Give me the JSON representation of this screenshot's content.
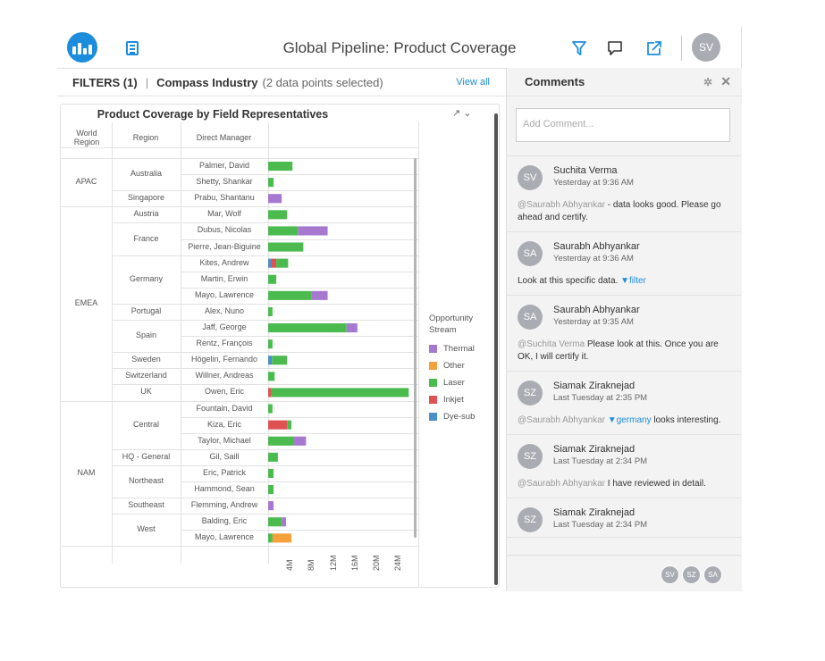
{
  "header": {
    "title": "Global Pipeline: Product Coverage",
    "user_initials": "SV"
  },
  "filters": {
    "label": "FILTERS (1)",
    "divider": "|",
    "filter_name": "Compass Industry",
    "filter_detail": "(2 data points selected)",
    "view_all": "View all"
  },
  "chart": {
    "title": "Product Coverage by Field Representatives",
    "controls": "↗ ⌄",
    "headers": {
      "world_region": "World Region",
      "region": "Region",
      "manager": "Direct Manager"
    },
    "legend_title": "Opportunity Stream",
    "colors": {
      "Thermal": "#a678d0",
      "Other": "#f5a03a",
      "Laser": "#4cbb4f",
      "Inkjet": "#e05252",
      "Dye-sub": "#4a90c8"
    }
  },
  "chart_data": {
    "type": "bar",
    "orientation": "horizontal",
    "stacked": true,
    "title": "Product Coverage by Field Representatives",
    "xlabel": "",
    "ylabel": "",
    "x_ticks": [
      "4M",
      "8M",
      "12M",
      "16M",
      "20M",
      "24M"
    ],
    "xlim": [
      0,
      26
    ],
    "legend": {
      "title": "Opportunity Stream",
      "placement": "right",
      "entries": [
        "Thermal",
        "Other",
        "Laser",
        "Inkjet",
        "Dye-sub"
      ]
    },
    "world_regions": [
      {
        "name": "APAC",
        "start": 0,
        "end": 2
      },
      {
        "name": "EMEA",
        "start": 3,
        "end": 14
      },
      {
        "name": "NAM",
        "start": 15,
        "end": 23
      }
    ],
    "regions": [
      {
        "name": "Australia",
        "start": 0,
        "end": 1
      },
      {
        "name": "Singapore",
        "start": 2,
        "end": 2
      },
      {
        "name": "Austria",
        "start": 3,
        "end": 3
      },
      {
        "name": "France",
        "start": 4,
        "end": 5
      },
      {
        "name": "Germany",
        "start": 6,
        "end": 8
      },
      {
        "name": "Portugal",
        "start": 9,
        "end": 9
      },
      {
        "name": "Spain",
        "start": 10,
        "end": 11
      },
      {
        "name": "Sweden",
        "start": 12,
        "end": 12
      },
      {
        "name": "Switzerland",
        "start": 13,
        "end": 13
      },
      {
        "name": "UK",
        "start": 14,
        "end": 14
      },
      {
        "name": "Central",
        "start": 15,
        "end": 17
      },
      {
        "name": "HQ - General",
        "start": 18,
        "end": 18
      },
      {
        "name": "Northeast",
        "start": 19,
        "end": 20
      },
      {
        "name": "Southeast",
        "start": 21,
        "end": 21
      },
      {
        "name": "West",
        "start": 22,
        "end": 23
      }
    ],
    "rows": [
      {
        "manager": "Palmer, David",
        "Dye-sub": 0,
        "Inkjet": 0,
        "Laser": 4.5,
        "Other": 0,
        "Thermal": 0
      },
      {
        "manager": "Shetty, Shankar",
        "Dye-sub": 0,
        "Inkjet": 0,
        "Laser": 1,
        "Other": 0,
        "Thermal": 0
      },
      {
        "manager": "Prabu, Shantanu",
        "Dye-sub": 0,
        "Inkjet": 0,
        "Laser": 0,
        "Other": 0,
        "Thermal": 2.5
      },
      {
        "manager": "Mar, Wolf",
        "Dye-sub": 0,
        "Inkjet": 0,
        "Laser": 3.5,
        "Other": 0,
        "Thermal": 0
      },
      {
        "manager": "Dubus, Nicolas",
        "Dye-sub": 0,
        "Inkjet": 0,
        "Laser": 5.5,
        "Other": 0,
        "Thermal": 5.5
      },
      {
        "manager": "Pierre, Jean-Biguine",
        "Dye-sub": 0,
        "Inkjet": 0,
        "Laser": 6.5,
        "Other": 0,
        "Thermal": 0
      },
      {
        "manager": "Kites, Andrew",
        "Dye-sub": 0.5,
        "Inkjet": 1,
        "Laser": 2.2,
        "Other": 0,
        "Thermal": 0
      },
      {
        "manager": "Martin, Erwin",
        "Dye-sub": 0,
        "Inkjet": 0,
        "Laser": 1.5,
        "Other": 0,
        "Thermal": 0
      },
      {
        "manager": "Mayo, Lawrence",
        "Dye-sub": 0,
        "Inkjet": 0,
        "Laser": 8,
        "Other": 0,
        "Thermal": 3
      },
      {
        "manager": "Alex, Nuno",
        "Dye-sub": 0,
        "Inkjet": 0,
        "Laser": 0.8,
        "Other": 0,
        "Thermal": 0
      },
      {
        "manager": "Jaff, George",
        "Dye-sub": 0,
        "Inkjet": 0,
        "Laser": 14.5,
        "Other": 0,
        "Thermal": 2
      },
      {
        "manager": "Rentz, François",
        "Dye-sub": 0,
        "Inkjet": 0,
        "Laser": 0.8,
        "Other": 0,
        "Thermal": 0
      },
      {
        "manager": "Högelin, Fernando",
        "Dye-sub": 0.7,
        "Inkjet": 0,
        "Laser": 2.8,
        "Other": 0,
        "Thermal": 0
      },
      {
        "manager": "Willner, Andreas",
        "Dye-sub": 0,
        "Inkjet": 0,
        "Laser": 1.2,
        "Other": 0,
        "Thermal": 0
      },
      {
        "manager": "Owen, Eric",
        "Dye-sub": 0,
        "Inkjet": 0.5,
        "Laser": 25.5,
        "Other": 0,
        "Thermal": 0
      },
      {
        "manager": "Fountain, David",
        "Dye-sub": 0,
        "Inkjet": 0,
        "Laser": 0.8,
        "Other": 0,
        "Thermal": 0
      },
      {
        "manager": "Kiza, Eric",
        "Dye-sub": 0,
        "Inkjet": 3.5,
        "Laser": 0.8,
        "Other": 0,
        "Thermal": 0
      },
      {
        "manager": "Taylor, Michael",
        "Dye-sub": 0,
        "Inkjet": 0,
        "Laser": 4.8,
        "Other": 0,
        "Thermal": 2.2
      },
      {
        "manager": "Gil, Saill",
        "Dye-sub": 0,
        "Inkjet": 0,
        "Laser": 1.8,
        "Other": 0,
        "Thermal": 0
      },
      {
        "manager": "Eric, Patrick",
        "Dye-sub": 0,
        "Inkjet": 0,
        "Laser": 1,
        "Other": 0,
        "Thermal": 0
      },
      {
        "manager": "Hammond, Sean",
        "Dye-sub": 0,
        "Inkjet": 0,
        "Laser": 1,
        "Other": 0,
        "Thermal": 0
      },
      {
        "manager": "Flemming, Andrew",
        "Dye-sub": 0,
        "Inkjet": 0,
        "Laser": 0,
        "Other": 0,
        "Thermal": 1
      },
      {
        "manager": "Balding, Eric",
        "Dye-sub": 0,
        "Inkjet": 0,
        "Laser": 2.5,
        "Other": 0,
        "Thermal": 0.8
      },
      {
        "manager": "Mayo, Lawrence",
        "Dye-sub": 0,
        "Inkjet": 0,
        "Laser": 0.8,
        "Other": 3.5,
        "Thermal": 0
      }
    ]
  },
  "comments": {
    "title": "Comments",
    "pin_icon": "✲",
    "close_icon": "✕",
    "add_placeholder": "Add Comment...",
    "items": [
      {
        "initials": "SV",
        "name": "Suchita Verma",
        "time": "Yesterday at 9:36 AM",
        "mention": "@Saurabh Abhyankar",
        "text": " - data looks good. Please go ahead and certify.",
        "link": "",
        "text_after": ""
      },
      {
        "initials": "SA",
        "name": "Saurabh Abhyankar",
        "time": "Yesterday at 9:36 AM",
        "mention": "",
        "text": "Look at this specific data. ",
        "link": "▼filter",
        "text_after": ""
      },
      {
        "initials": "SA",
        "name": "Saurabh Abhyankar",
        "time": "Yesterday at 9:35 AM",
        "mention": "@Suchita Verma",
        "text": " Please look at this.  Once you are OK, I will certify it.",
        "link": "",
        "text_after": ""
      },
      {
        "initials": "SZ",
        "name": "Siamak Ziraknejad",
        "time": "Last Tuesday at 2:35 PM",
        "mention": "@Saurabh Abhyankar",
        "text": " ",
        "link": "▼germany",
        "text_after": " looks interesting."
      },
      {
        "initials": "SZ",
        "name": "Siamak Ziraknejad",
        "time": "Last Tuesday at 2:34 PM",
        "mention": "@Saurabh Abhyankar",
        "text": " I have reviewed in detail.",
        "link": "",
        "text_after": ""
      },
      {
        "initials": "SZ",
        "name": "Siamak Ziraknejad",
        "time": "Last Tuesday at 2:34 PM",
        "mention": "",
        "text": "",
        "link": "",
        "text_after": ""
      }
    ],
    "participants": [
      "SV",
      "SZ",
      "SA"
    ]
  }
}
